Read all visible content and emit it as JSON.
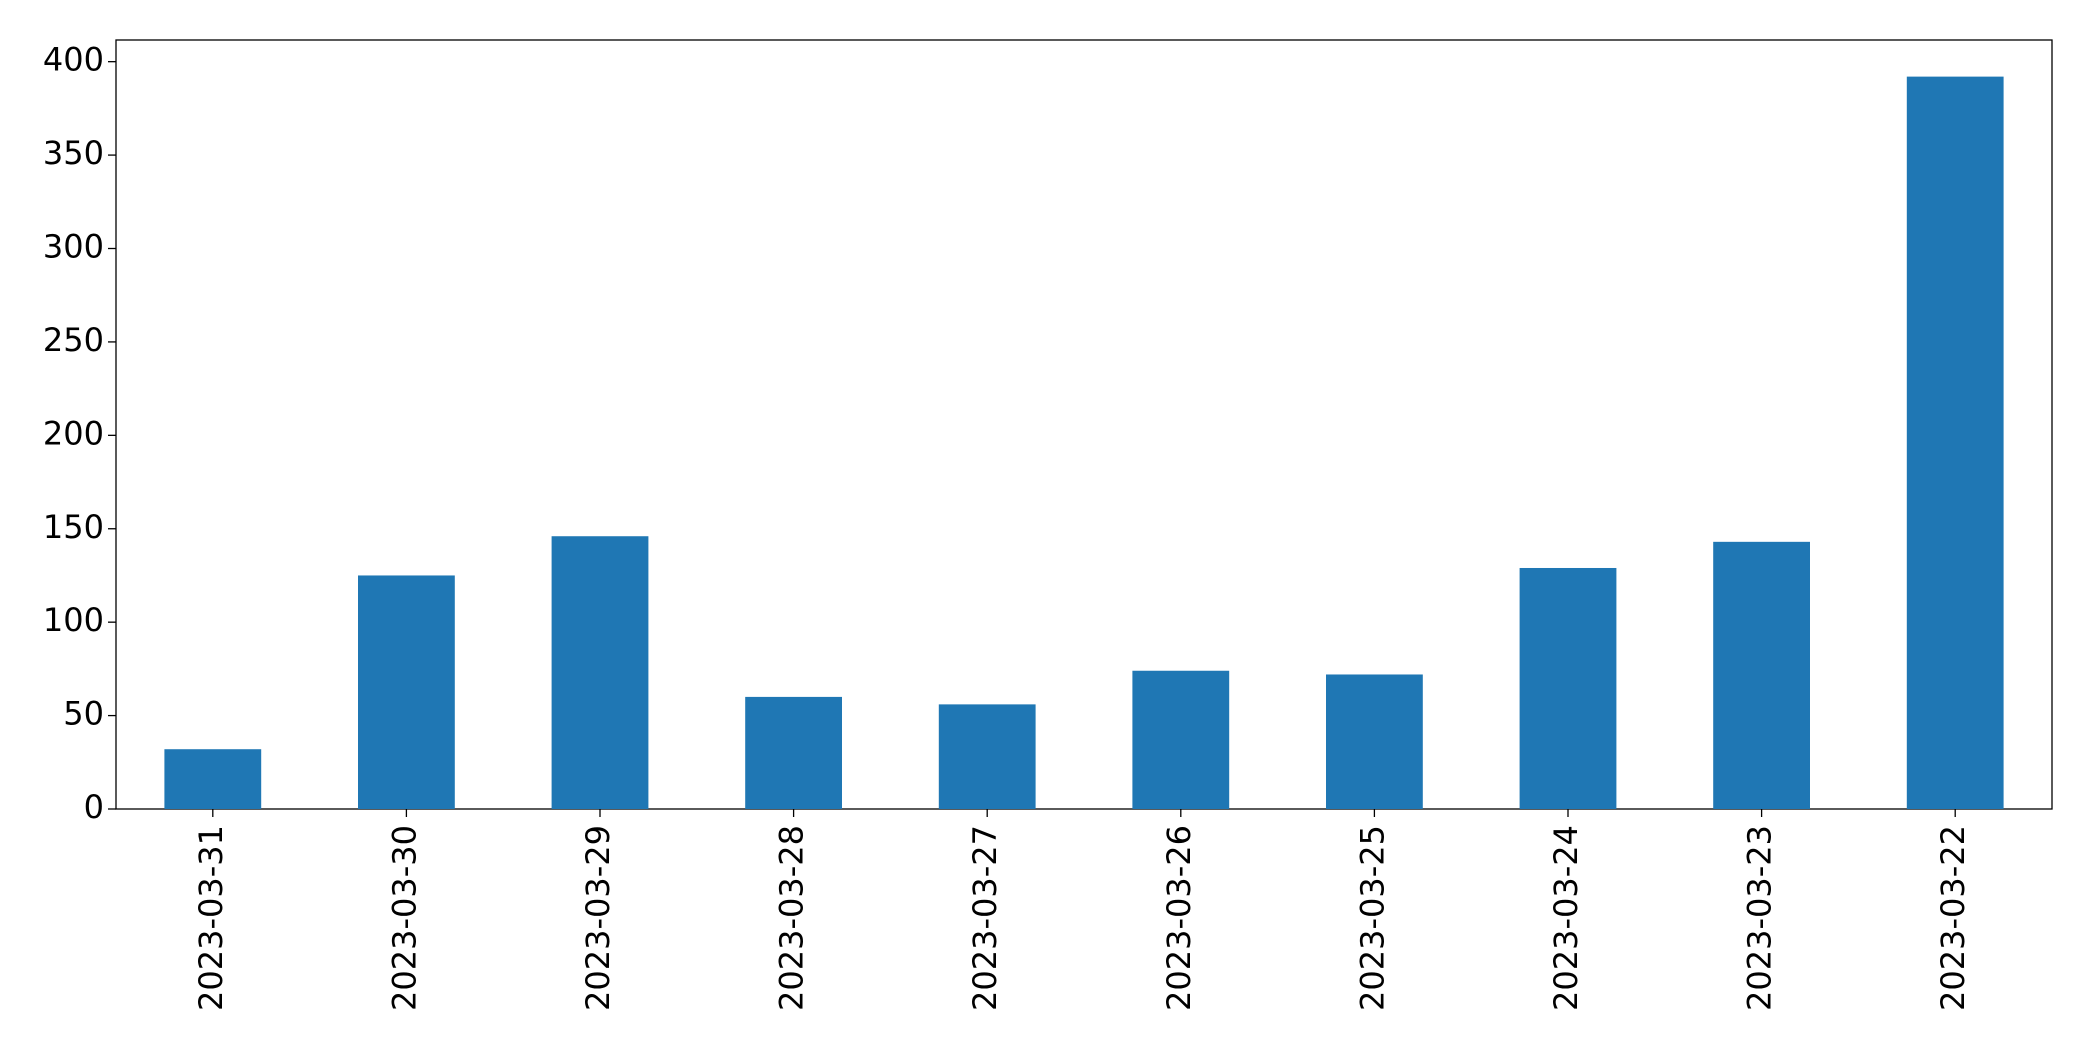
{
  "chart_data": {
    "type": "bar",
    "categories": [
      "2023-03-31",
      "2023-03-30",
      "2023-03-29",
      "2023-03-28",
      "2023-03-27",
      "2023-03-26",
      "2023-03-25",
      "2023-03-24",
      "2023-03-23",
      "2023-03-22"
    ],
    "values": [
      32,
      125,
      146,
      60,
      56,
      74,
      72,
      129,
      143,
      392
    ],
    "color": "#1f77b4",
    "ylim": [
      0,
      411.6
    ],
    "yticks": [
      0,
      50,
      100,
      150,
      200,
      250,
      300,
      350,
      400
    ],
    "grid": false
  }
}
